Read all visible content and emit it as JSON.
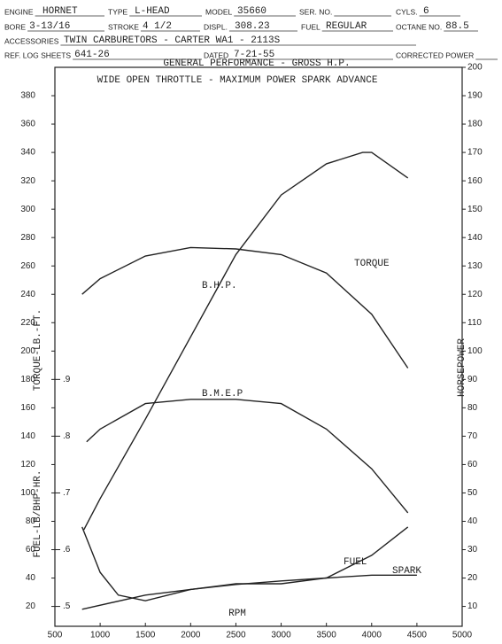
{
  "form": {
    "rows": [
      [
        {
          "label": "ENGINE",
          "value": "HORNET"
        },
        {
          "label": "TYPE",
          "value": "L-HEAD"
        },
        {
          "label": "MODEL",
          "value": "35660"
        },
        {
          "label": "SER. NO."
        },
        {
          "label": "CYLS.",
          "value": "6"
        }
      ],
      [
        {
          "label": "BORE",
          "value": "3-13/16"
        },
        {
          "label": "STROKE",
          "value": "4 1/2"
        },
        {
          "label": "DISPL.",
          "value": "308.23"
        },
        {
          "label": "FUEL",
          "value": "REGULAR"
        },
        {
          "label": "OCTANE NO.",
          "value": "88.5"
        }
      ],
      [
        {
          "label": "ACCESSORIES",
          "value": "TWIN CARBURETORS - CARTER WA1 - 2113S"
        }
      ],
      [
        {
          "label": "REF. LOG SHEETS",
          "value": "641-26"
        },
        {
          "label": "DATED",
          "value": "7-21-55"
        },
        {
          "label": "CORRECTED POWER"
        }
      ]
    ]
  },
  "chart_data": {
    "type": "line",
    "title": "GENERAL PERFORMANCE - GROSS H.P.",
    "subtitle": "WIDE OPEN THROTTLE - MAXIMUM POWER SPARK ADVANCE",
    "x_label": "RPM",
    "y_label": "TORQUE-LB.-FT.",
    "y2_label": "HORSEPOWER",
    "y3_label": "FUEL-LB/BHP-HR.",
    "xlim": [
      500,
      5000
    ],
    "xticks": [
      500,
      1000,
      1500,
      2000,
      2500,
      3000,
      3500,
      4000,
      4500,
      5000
    ],
    "ylim": [
      6,
      400
    ],
    "yticks": [
      20,
      40,
      60,
      80,
      100,
      120,
      140,
      160,
      180,
      200,
      220,
      240,
      260,
      280,
      300,
      320,
      340,
      360,
      380
    ],
    "y2lim": [
      3,
      200
    ],
    "y2ticks": [
      10,
      20,
      30,
      40,
      50,
      60,
      70,
      80,
      90,
      100,
      110,
      120,
      130,
      140,
      150,
      160,
      170,
      180,
      190,
      200
    ],
    "y3lim": [
      0.465,
      1.45
    ],
    "y3ticks": [
      {
        "value": 0.5,
        "label": ".5"
      },
      {
        "value": 0.6,
        "label": ".6"
      },
      {
        "value": 0.7,
        "label": ".7"
      },
      {
        "value": 0.8,
        "label": ".8"
      },
      {
        "value": 0.9,
        "label": ".9"
      }
    ],
    "grid": false,
    "series": [
      {
        "name": "TORQUE",
        "color": "#222",
        "axis": "y",
        "x": [
          800,
          1000,
          1500,
          2000,
          2500,
          3000,
          3500,
          4000,
          4400
        ],
        "values": [
          240,
          251,
          267,
          273,
          272,
          268,
          255,
          226,
          188
        ]
      },
      {
        "name": "B.H.P.",
        "color": "#222",
        "axis": "y2",
        "x": [
          820,
          1000,
          1500,
          2000,
          2500,
          3000,
          3500,
          3900,
          4000,
          4400
        ],
        "values": [
          37,
          48,
          76,
          105,
          134,
          155,
          166,
          170,
          170,
          161
        ]
      },
      {
        "name": "B.M.E.P",
        "color": "#222",
        "axis": "y",
        "x": [
          850,
          1000,
          1500,
          2000,
          2500,
          3000,
          3500,
          4000,
          4400
        ],
        "values": [
          136,
          145,
          163,
          166,
          166,
          163,
          145,
          117,
          86
        ]
      },
      {
        "name": "FUEL",
        "color": "#222",
        "axis": "y3",
        "x": [
          800,
          1000,
          1200,
          1500,
          2000,
          2500,
          3000,
          3500,
          4000,
          4400
        ],
        "values": [
          0.64,
          0.56,
          0.52,
          0.51,
          0.53,
          0.54,
          0.54,
          0.55,
          0.59,
          0.64
        ]
      },
      {
        "name": "SPARK",
        "color": "#222",
        "axis": "y",
        "x": [
          800,
          1500,
          2000,
          2500,
          3000,
          3500,
          4000,
          4500
        ],
        "values": [
          18,
          28,
          32,
          35.5,
          38,
          40,
          42,
          42
        ]
      }
    ]
  }
}
